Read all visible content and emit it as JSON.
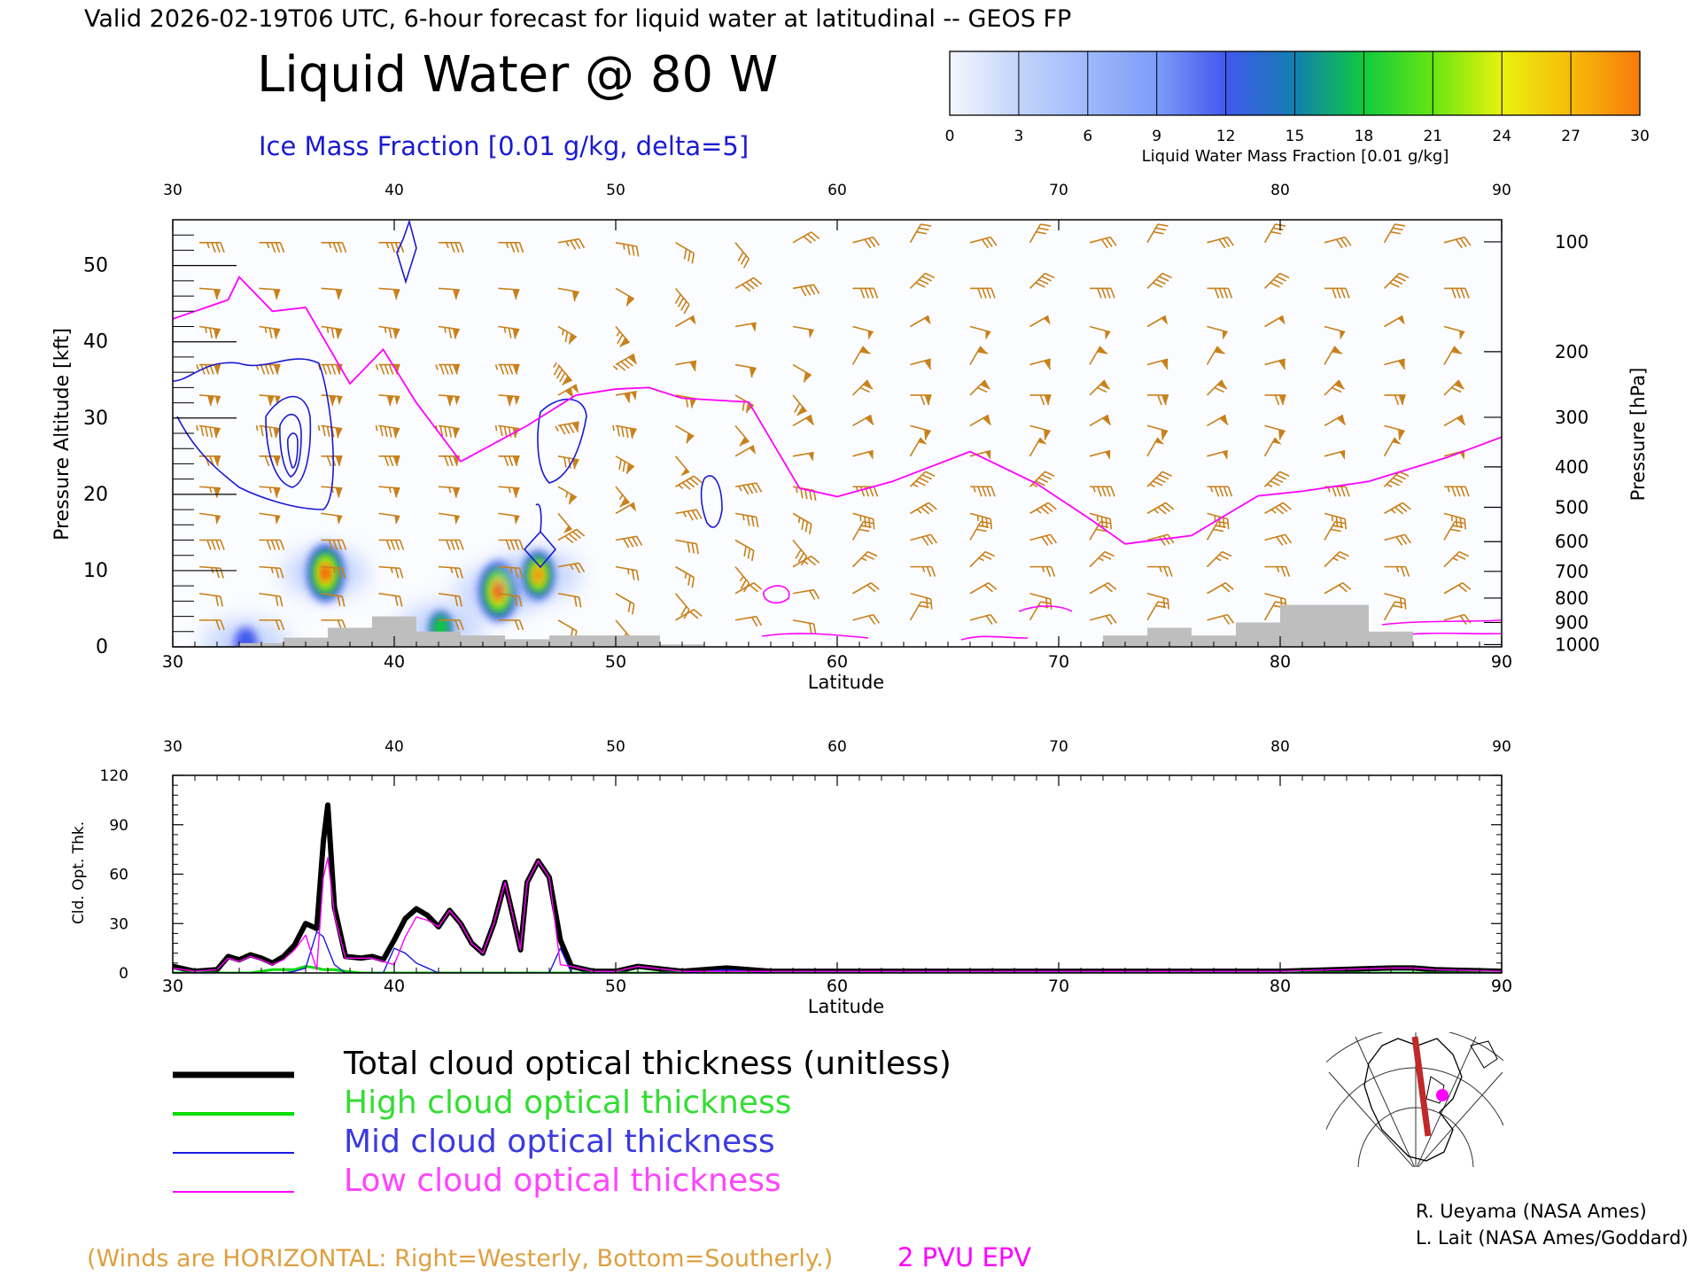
{
  "header": {
    "valid_line": "Valid 2026-02-19T06 UTC, 6-hour forecast for liquid water at latitudinal -- GEOS FP",
    "title": "Liquid Water @ 80 W",
    "subtitle": "Ice Mass Fraction [0.01 g/kg, delta=5]"
  },
  "colorbar": {
    "label": "Liquid Water Mass Fraction [0.01 g/kg]",
    "ticks": [
      "0",
      "3",
      "6",
      "9",
      "12",
      "15",
      "18",
      "21",
      "24",
      "27",
      "30"
    ],
    "colors": [
      "#f4f6fd",
      "#c2d4fa",
      "#9fb9fb",
      "#7c9cf8",
      "#4258ee",
      "#137fb0",
      "#0fcb3e",
      "#67e612",
      "#e8f20c",
      "#f7bb0a",
      "#f77a0a",
      "#ef2a0a"
    ]
  },
  "styles": {
    "barb_color": "#c8801a",
    "pvu_color": "#ff00ff",
    "ice_contour_color": "#1a1ad0",
    "terrain_color": "#bebebe"
  },
  "chart_data": [
    {
      "type": "heatmap",
      "xlabel": "Latitude",
      "ylabel": "Pressure Altitude [kft]",
      "right_ylabel": "Pressure [hPa]",
      "xlim": [
        30,
        90
      ],
      "ylim": [
        0,
        56
      ],
      "x_ticks": [
        "30",
        "40",
        "50",
        "60",
        "70",
        "80",
        "90"
      ],
      "y_ticks": [
        "0",
        "10",
        "20",
        "30",
        "40",
        "50"
      ],
      "pressure_ticks": [
        {
          "label": "100",
          "kft": 53.1
        },
        {
          "label": "200",
          "kft": 38.7
        },
        {
          "label": "300",
          "kft": 30.1
        },
        {
          "label": "400",
          "kft": 23.6
        },
        {
          "label": "500",
          "kft": 18.3
        },
        {
          "label": "600",
          "kft": 13.8
        },
        {
          "label": "700",
          "kft": 9.9
        },
        {
          "label": "800",
          "kft": 6.4
        },
        {
          "label": "900",
          "kft": 3.2
        },
        {
          "label": "1000",
          "kft": 0.3
        }
      ],
      "liquid_water_blobs": [
        {
          "lat": 36.9,
          "kft": 9.7,
          "peak": 26
        },
        {
          "lat": 44.7,
          "kft": 7.3,
          "peak": 27
        },
        {
          "lat": 46.5,
          "kft": 9.4,
          "peak": 22
        },
        {
          "lat": 42.1,
          "kft": 2.5,
          "peak": 15
        },
        {
          "lat": 33.3,
          "kft": 0.4,
          "peak": 13
        }
      ],
      "epv_2pvu_line": {
        "lat": [
          30,
          32.5,
          33,
          34.5,
          36,
          38,
          39.5,
          41,
          43,
          46,
          48.2,
          50,
          51.5,
          53,
          56,
          58.3,
          60,
          62.5,
          66,
          69,
          71.5,
          73,
          76,
          79,
          81,
          84,
          87.5,
          90
        ],
        "kft": [
          43,
          45.5,
          48.5,
          44,
          44.5,
          34.5,
          39,
          32,
          24.3,
          29,
          33,
          33.8,
          34,
          32.6,
          32.1,
          20.8,
          19.7,
          21.7,
          25.6,
          21.4,
          16.6,
          13.5,
          14.6,
          19.8,
          20.4,
          21.7,
          24.8,
          27.5
        ]
      },
      "terrain": {
        "lat": [
          30,
          33,
          35,
          37,
          39,
          41,
          43,
          45,
          47,
          50,
          52,
          54,
          56,
          58,
          60,
          62,
          64,
          66,
          68,
          70,
          72,
          74,
          76,
          78,
          80,
          82,
          84,
          86,
          88,
          90
        ],
        "kft": [
          0,
          0.5,
          1.2,
          2.5,
          4.0,
          2.0,
          1.5,
          1.0,
          1.5,
          1.5,
          0.3,
          0,
          0,
          0,
          0,
          0,
          0,
          0,
          0,
          0,
          1.5,
          2.5,
          1.5,
          3.2,
          5.5,
          5.5,
          2.0,
          0,
          0,
          0
        ]
      }
    },
    {
      "type": "line",
      "xlabel": "Latitude",
      "ylabel": "Cld. Opt. Thk.",
      "xlim": [
        30,
        90
      ],
      "ylim": [
        0,
        120
      ],
      "x_ticks": [
        "30",
        "40",
        "50",
        "60",
        "70",
        "80",
        "90"
      ],
      "y_ticks": [
        "0",
        "30",
        "60",
        "90",
        "120"
      ],
      "x": [
        30,
        31,
        32,
        32.5,
        33,
        33.5,
        34,
        34.5,
        35,
        35.5,
        36,
        36.5,
        36.8,
        37,
        37.3,
        37.8,
        38.5,
        39,
        39.5,
        40,
        40.5,
        41,
        41.5,
        42,
        42.5,
        43,
        43.5,
        44,
        44.5,
        45,
        45.3,
        45.7,
        46,
        46.5,
        47,
        47.5,
        48,
        49,
        50,
        51,
        53,
        55,
        57,
        60,
        65,
        70,
        75,
        80,
        85,
        86,
        87,
        90
      ],
      "series": [
        {
          "name": "Total cloud optical thickness (unitless)",
          "color": "#000000",
          "values": [
            4,
            1,
            2,
            10,
            8,
            11,
            9,
            6,
            10,
            17,
            30,
            27,
            80,
            102,
            40,
            10,
            9,
            10,
            8,
            20,
            33,
            39,
            35,
            28,
            38,
            30,
            18,
            12,
            30,
            55,
            38,
            14,
            55,
            68,
            58,
            20,
            4,
            1,
            1,
            4,
            1,
            3,
            1,
            1,
            1,
            1,
            1,
            1,
            3,
            3,
            2,
            1
          ]
        },
        {
          "name": "High cloud optical thickness",
          "color": "#00dd00",
          "values": [
            0,
            0,
            0,
            0,
            0,
            0,
            1,
            2,
            2,
            2,
            4,
            3,
            2,
            2,
            2,
            1,
            0,
            0,
            0,
            0,
            0,
            0,
            0,
            0,
            0,
            0,
            0,
            0,
            0,
            0,
            0,
            0,
            0,
            0,
            0,
            0,
            0,
            0,
            0,
            0,
            0,
            0,
            0,
            0,
            0,
            0,
            0,
            0,
            0,
            0,
            0,
            0
          ]
        },
        {
          "name": "Mid cloud optical thickness",
          "color": "#1a1ae0",
          "values": [
            0,
            0,
            0,
            0,
            0,
            0,
            0,
            0,
            0,
            1,
            3,
            25,
            22,
            15,
            5,
            0,
            0,
            0,
            0,
            15,
            12,
            6,
            3,
            0,
            0,
            0,
            0,
            0,
            0,
            0,
            0,
            0,
            0,
            0,
            0,
            15,
            0,
            0,
            0,
            0,
            0,
            2,
            0,
            0,
            0,
            0,
            0,
            0,
            0,
            0,
            0,
            0
          ]
        },
        {
          "name": "Low cloud optical thickness",
          "color": "#ff00ff",
          "values": [
            3,
            1,
            2,
            9,
            7,
            10,
            8,
            5,
            8,
            14,
            23,
            2,
            58,
            70,
            35,
            9,
            9,
            9,
            7,
            5,
            22,
            34,
            32,
            28,
            38,
            30,
            18,
            12,
            30,
            55,
            38,
            14,
            55,
            68,
            58,
            5,
            4,
            1,
            1,
            4,
            1,
            1,
            1,
            1,
            1,
            1,
            1,
            1,
            3,
            3,
            2,
            1
          ]
        }
      ]
    }
  ],
  "legend": {
    "total": "Total cloud optical thickness (unitless)",
    "high": "High cloud optical thickness",
    "mid": "Mid cloud optical thickness",
    "low": "Low cloud optical thickness"
  },
  "footer": {
    "winds_note": "(Winds are HORIZONTAL: Right=Westerly, Bottom=Southerly.)",
    "epv_note": "2 PVU EPV",
    "credit_1": "R. Ueyama (NASA Ames)",
    "credit_2": "L. Lait (NASA Ames/Goddard)"
  },
  "map_inset": {
    "icon": "north-america-polar-map-icon",
    "section_color": "#c0282a",
    "marker_color": "#ff00ff"
  }
}
